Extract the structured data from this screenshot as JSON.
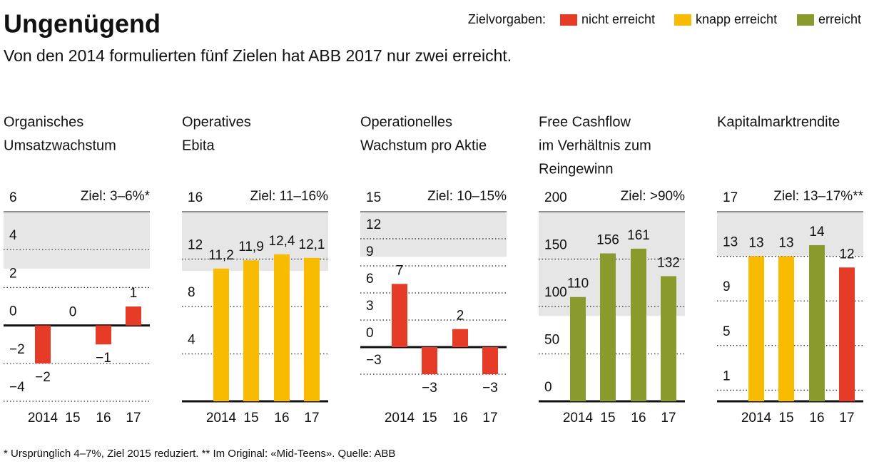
{
  "title": "Ungenügend",
  "subtitle": "Von den 2014 formulierten fünf Zielen hat ABB 2017 nur zwei erreicht.",
  "legend_title": "Zielvorgaben:",
  "legend": [
    {
      "name": "nicht erreicht",
      "color": "#e63c27"
    },
    {
      "name": "knapp erreicht",
      "color": "#f8bb00"
    },
    {
      "name": "erreicht",
      "color": "#8a9a2c"
    }
  ],
  "footnote": "* Ursprünglich 4–7%, Ziel 2015 reduziert. ** Im Original: «Mid-Teens». Quelle: ABB",
  "chart_data": [
    {
      "type": "bar",
      "title": [
        "Organisches",
        "Umsatzwachstum"
      ],
      "target_label": "Ziel: 3–6%*",
      "target_range": [
        3,
        6
      ],
      "ylim": [
        -4,
        6
      ],
      "yticks": [
        6,
        4,
        2,
        0,
        {
          "value": -2,
          "label": "−2"
        },
        {
          "value": -4,
          "label": "−4"
        }
      ],
      "categories": [
        "2014",
        "15",
        "16",
        "17"
      ],
      "values": [
        -2,
        0,
        -1,
        1
      ],
      "value_labels": [
        "−2",
        "0",
        "−1",
        "1"
      ],
      "colors": [
        "#e63c27",
        "#e63c27",
        "#e63c27",
        "#e63c27"
      ]
    },
    {
      "type": "bar",
      "title": [
        "Operatives",
        "Ebita"
      ],
      "target_label": "Ziel: 11–16%",
      "target_range": [
        11,
        16
      ],
      "ylim": [
        0,
        16
      ],
      "yticks": [
        16,
        12,
        8,
        4
      ],
      "categories": [
        "2014",
        "15",
        "16",
        "17"
      ],
      "values": [
        11.2,
        11.9,
        12.4,
        12.1
      ],
      "value_labels": [
        "11,2",
        "11,9",
        "12,4",
        "12,1"
      ],
      "colors": [
        "#f8bb00",
        "#f8bb00",
        "#f8bb00",
        "#f8bb00"
      ]
    },
    {
      "type": "bar",
      "title": [
        "Operationelles",
        "Wachstum pro Aktie"
      ],
      "target_label": "Ziel: 10–15%",
      "target_range": [
        10,
        15
      ],
      "ylim": [
        -6,
        15
      ],
      "yticks": [
        15,
        12,
        9,
        6,
        3,
        0,
        {
          "value": -3,
          "label": "−3"
        }
      ],
      "categories": [
        "2014",
        "15",
        "16",
        "17"
      ],
      "values": [
        7,
        -3,
        2,
        -3
      ],
      "value_labels": [
        "7",
        "−3",
        "2",
        "−3"
      ],
      "colors": [
        "#e63c27",
        "#e63c27",
        "#e63c27",
        "#e63c27"
      ]
    },
    {
      "type": "bar",
      "title": [
        "Free Cashflow",
        "im Verhältnis zum",
        "Reingewinn"
      ],
      "target_label": "Ziel: >90%",
      "target_range": [
        90,
        200
      ],
      "ylim": [
        0,
        200
      ],
      "yticks": [
        200,
        150,
        100,
        50,
        0
      ],
      "categories": [
        "2014",
        "15",
        "16",
        "17"
      ],
      "values": [
        110,
        156,
        161,
        132
      ],
      "colors": [
        "#8a9a2c",
        "#8a9a2c",
        "#8a9a2c",
        "#8a9a2c"
      ]
    },
    {
      "type": "bar",
      "title": [
        "Kapitalmarktrendite"
      ],
      "target_label": "Ziel: 13–17%**",
      "target_range": [
        13,
        17
      ],
      "ylim": [
        0,
        17
      ],
      "yticks": [
        17,
        13,
        9,
        5,
        1
      ],
      "categories": [
        "2014",
        "15",
        "16",
        "17"
      ],
      "values": [
        13,
        13,
        14,
        12
      ],
      "colors": [
        "#f8bb00",
        "#f8bb00",
        "#8a9a2c",
        "#e63c27"
      ]
    }
  ]
}
